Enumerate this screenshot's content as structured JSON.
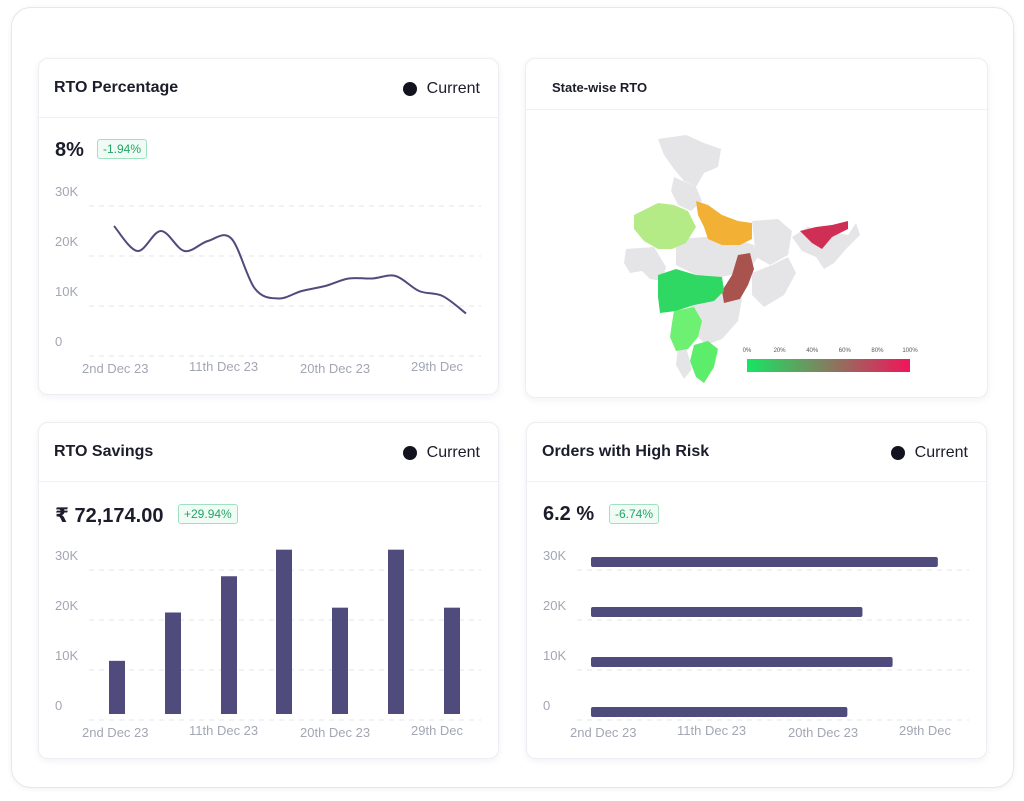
{
  "colors": {
    "series": "#4f4b7d",
    "grid": "#e3e5ea",
    "badge_text": "#21a564",
    "legend_dot": "#12131f"
  },
  "rto_percentage": {
    "title": "RTO Percentage",
    "legend": "Current",
    "value": "8%",
    "change": "-1.94%",
    "chart_data": {
      "type": "line",
      "y_ticks": [
        "30K",
        "20K",
        "10K",
        "0"
      ],
      "x_labels": [
        "2nd Dec 23",
        "11th Dec 23",
        "20th Dec 23",
        "29th Dec"
      ],
      "ylim": [
        0,
        30000
      ],
      "series": [
        {
          "values": [
            24000,
            19000,
            23000,
            19000,
            21000,
            21500,
            11500,
            9500,
            11000,
            12000,
            13500,
            13500,
            14000,
            11000,
            10000,
            6500
          ]
        }
      ]
    }
  },
  "state_rto": {
    "title": "State-wise RTO",
    "scale_labels": [
      "0%",
      "20%",
      "40%",
      "60%",
      "80%",
      "100%"
    ],
    "scale_from": "#17e563",
    "scale_to": "#f2145a",
    "states": [
      {
        "name": "Rajasthan",
        "color": "#b5eb86"
      },
      {
        "name": "Uttar Pradesh",
        "color": "#f2b134"
      },
      {
        "name": "Assam",
        "color": "#cf2f55"
      },
      {
        "name": "Chhattisgarh",
        "color": "#a8534d"
      },
      {
        "name": "Maharashtra",
        "color": "#2fd862"
      },
      {
        "name": "Karnataka",
        "color": "#6ef073"
      },
      {
        "name": "Tamil Nadu",
        "color": "#5ced6b"
      }
    ]
  },
  "rto_savings": {
    "title": "RTO Savings",
    "legend": "Current",
    "value": "₹ 72,174.00",
    "change": "+29.94%",
    "chart_data": {
      "type": "bar",
      "y_ticks": [
        "30K",
        "20K",
        "10K",
        "0"
      ],
      "x_labels": [
        "2nd Dec 23",
        "11th Dec 23",
        "20th Dec 23",
        "29th Dec"
      ],
      "ylim": [
        0,
        30000
      ],
      "values": [
        11000,
        21000,
        28500,
        34000,
        22000,
        34000,
        22000
      ]
    }
  },
  "high_risk": {
    "title": "Orders with High Risk",
    "legend": "Current",
    "value": "6.2 %",
    "change": "-6.74%",
    "chart_data": {
      "type": "bar",
      "orientation": "horizontal",
      "y_ticks": [
        "30K",
        "20K",
        "10K",
        "0"
      ],
      "x_labels": [
        "2nd Dec 23",
        "11th Dec 23",
        "20th Dec 23",
        "29th Dec"
      ],
      "values": [
        0.92,
        0.72,
        0.8,
        0.68
      ]
    }
  }
}
